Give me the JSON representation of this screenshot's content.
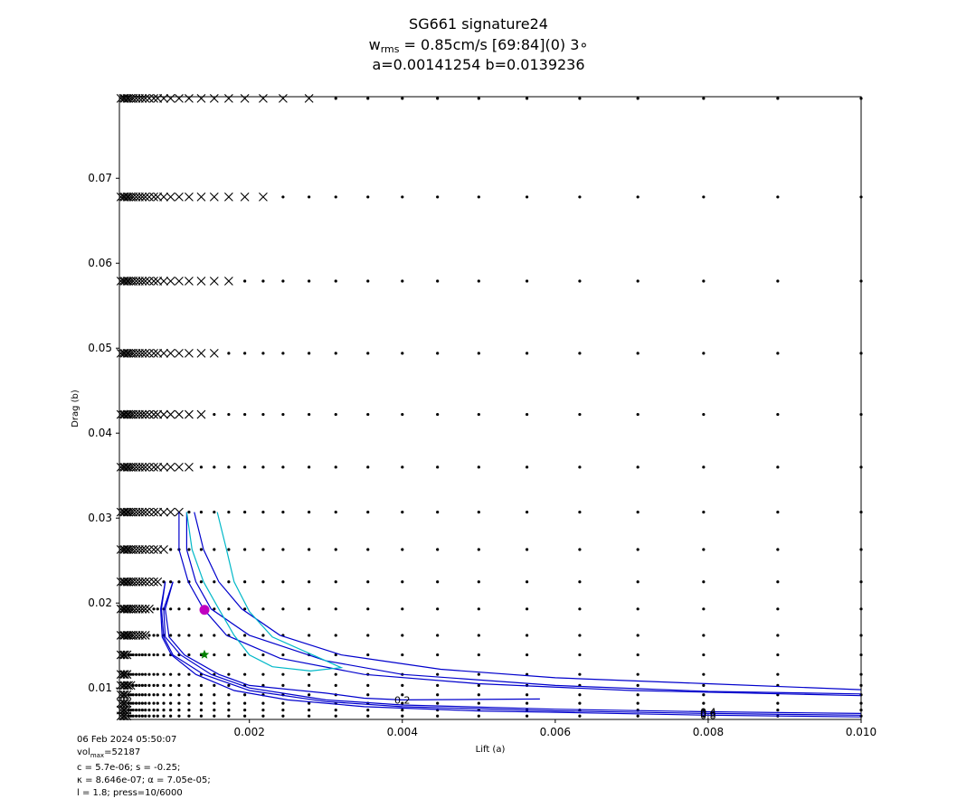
{
  "title": {
    "line1": "SG661 signature24",
    "line2_prefix": "w",
    "line2_sub": "rms",
    "line2_rest": " = 0.85cm/s [69:84](0) 3∘",
    "line3": "a=0.00141254 b=0.0139236"
  },
  "footer": {
    "date": "06 Feb 2024 05:50:07",
    "vol_prefix": "vol",
    "vol_sub": "max",
    "vol_rest": "=52187",
    "line3": "c = 5.7e-06; s = -0.25;",
    "line4": "κ = 8.646e-07; α = 7.05e-05;",
    "line5": "l = 1.8; press=10/6000"
  },
  "chart_data": {
    "type": "scatter",
    "xlabel": "Lift (a)",
    "ylabel": "Drag (b)",
    "xlim": [
      0.0003,
      0.01
    ],
    "ylim": [
      0.0063,
      0.0796
    ],
    "x_ticks": [
      0.002,
      0.004,
      0.006,
      0.008,
      0.01
    ],
    "x_tick_labels": [
      "0.002",
      "0.004",
      "0.006",
      "0.008",
      "0.010"
    ],
    "y_ticks": [
      0.01,
      0.02,
      0.03,
      0.04,
      0.05,
      0.06,
      0.07
    ],
    "y_tick_labels": [
      "0.01",
      "0.02",
      "0.03",
      "0.04",
      "0.05",
      "0.06",
      "0.07"
    ],
    "grid": false,
    "grid_b_rows": [
      0.0067,
      0.0074,
      0.0082,
      0.0092,
      0.0103,
      0.0116,
      0.0139,
      0.0162,
      0.0193,
      0.0225,
      0.0263,
      0.0307,
      0.036,
      0.0422,
      0.0494,
      0.0579,
      0.0678,
      0.0794
    ],
    "grid_a_cols": [
      0.00032,
      0.00035,
      0.00037,
      0.0004,
      0.00042,
      0.00045,
      0.00048,
      0.00052,
      0.00056,
      0.0006,
      0.00064,
      0.00069,
      0.00075,
      0.0008,
      0.00088,
      0.00097,
      0.00108,
      0.00121,
      0.00137,
      0.00154,
      0.00173,
      0.00194,
      0.00218,
      0.00244,
      0.00278,
      0.00313,
      0.00355,
      0.004,
      0.00446,
      0.005,
      0.00563,
      0.00632,
      0.00708,
      0.00794,
      0.00891,
      0.01
    ],
    "crash_boundary_a": [
      0.0004,
      0.0004,
      0.0004,
      0.0004,
      0.00045,
      0.0004,
      0.0004,
      0.00064,
      0.0007,
      0.0008,
      0.00088,
      0.00108,
      0.00121,
      0.00137,
      0.00154,
      0.00173,
      0.00218,
      0.00278
    ],
    "contours": [
      {
        "label": "0.2",
        "color": "#0000cc",
        "points": [
          [
            0.001,
            0.0225
          ],
          [
            0.0009,
            0.0193
          ],
          [
            0.00095,
            0.016
          ],
          [
            0.00115,
            0.0139
          ],
          [
            0.0016,
            0.0116
          ],
          [
            0.002,
            0.0103
          ],
          [
            0.003,
            0.0094
          ],
          [
            0.0035,
            0.0088
          ],
          [
            0.004,
            0.0086
          ],
          [
            0.0058,
            0.0087
          ]
        ]
      },
      {
        "label": "0.4",
        "color": "#0000cc",
        "points": [
          [
            0.001,
            0.0225
          ],
          [
            0.00088,
            0.0193
          ],
          [
            0.0009,
            0.016
          ],
          [
            0.0011,
            0.0139
          ],
          [
            0.0015,
            0.0116
          ],
          [
            0.002,
            0.01
          ],
          [
            0.003,
            0.0086
          ],
          [
            0.004,
            0.008
          ],
          [
            0.006,
            0.0075
          ],
          [
            0.008,
            0.0072
          ],
          [
            0.01,
            0.007
          ]
        ]
      },
      {
        "label": "0.6",
        "color": "#0000cc",
        "points": [
          [
            0.0009,
            0.0225
          ],
          [
            0.00085,
            0.0193
          ],
          [
            0.00088,
            0.016
          ],
          [
            0.001,
            0.0139
          ],
          [
            0.0014,
            0.0116
          ],
          [
            0.002,
            0.0097
          ],
          [
            0.003,
            0.0084
          ],
          [
            0.004,
            0.0078
          ],
          [
            0.006,
            0.0073
          ],
          [
            0.008,
            0.007
          ],
          [
            0.01,
            0.0068
          ]
        ]
      },
      {
        "label": "0.8",
        "color": "#0000cc",
        "points": [
          [
            0.0009,
            0.0225
          ],
          [
            0.00084,
            0.0193
          ],
          [
            0.00086,
            0.016
          ],
          [
            0.00098,
            0.0139
          ],
          [
            0.0013,
            0.0116
          ],
          [
            0.0018,
            0.0097
          ],
          [
            0.0025,
            0.0086
          ],
          [
            0.0035,
            0.0078
          ],
          [
            0.005,
            0.0073
          ],
          [
            0.008,
            0.0068
          ],
          [
            0.01,
            0.0066
          ]
        ]
      },
      {
        "label": "",
        "color": "#0000cc",
        "points": [
          [
            0.00118,
            0.0307
          ],
          [
            0.00118,
            0.0263
          ],
          [
            0.0013,
            0.0225
          ],
          [
            0.0015,
            0.0193
          ],
          [
            0.002,
            0.0162
          ],
          [
            0.003,
            0.0132
          ],
          [
            0.004,
            0.0116
          ],
          [
            0.006,
            0.0103
          ],
          [
            0.008,
            0.0096
          ],
          [
            0.01,
            0.0093
          ]
        ]
      },
      {
        "label": "",
        "color": "#0000cc",
        "points": [
          [
            0.00128,
            0.0307
          ],
          [
            0.0014,
            0.0263
          ],
          [
            0.0016,
            0.0225
          ],
          [
            0.0019,
            0.0193
          ],
          [
            0.0024,
            0.0162
          ],
          [
            0.0032,
            0.0139
          ],
          [
            0.0045,
            0.0122
          ],
          [
            0.006,
            0.0112
          ],
          [
            0.008,
            0.0105
          ],
          [
            0.01,
            0.0098
          ]
        ]
      },
      {
        "label": "",
        "color": "#0000cc",
        "points": [
          [
            0.00108,
            0.0307
          ],
          [
            0.00108,
            0.0263
          ],
          [
            0.0012,
            0.0225
          ],
          [
            0.0014,
            0.0193
          ],
          [
            0.0017,
            0.0162
          ],
          [
            0.0024,
            0.0135
          ],
          [
            0.0035,
            0.0116
          ],
          [
            0.005,
            0.0105
          ],
          [
            0.007,
            0.0097
          ],
          [
            0.01,
            0.0091
          ]
        ]
      },
      {
        "label": "",
        "color": "#00b8c8",
        "points": [
          [
            0.00158,
            0.0307
          ],
          [
            0.0017,
            0.0263
          ],
          [
            0.0018,
            0.0225
          ],
          [
            0.002,
            0.019
          ],
          [
            0.0023,
            0.016
          ],
          [
            0.0028,
            0.014
          ],
          [
            0.0032,
            0.0124
          ],
          [
            0.0028,
            0.012
          ],
          [
            0.0023,
            0.0125
          ],
          [
            0.002,
            0.0139
          ],
          [
            0.0018,
            0.0162
          ],
          [
            0.0016,
            0.0193
          ],
          [
            0.0014,
            0.0225
          ],
          [
            0.00125,
            0.0263
          ],
          [
            0.00118,
            0.0307
          ]
        ]
      }
    ],
    "markers": [
      {
        "a": 0.00141254,
        "b": 0.0192,
        "color": "#c000c0",
        "shape": "circle"
      },
      {
        "a": 0.00141254,
        "b": 0.0139236,
        "color": "#008000",
        "shape": "star"
      }
    ]
  }
}
